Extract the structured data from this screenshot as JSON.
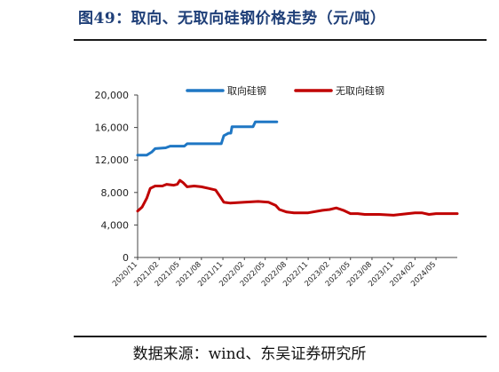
{
  "header": {
    "title": "图49：取向、无取向硅钢价格走势（元/吨）"
  },
  "footer": {
    "source": "数据来源：wind、东吴证券研究所"
  },
  "chart_data": {
    "type": "line",
    "title": "",
    "xlabel": "",
    "ylabel": "",
    "ylim": [
      0,
      20000
    ],
    "y_ticks": [
      "20,000",
      "16,000",
      "12,000",
      "8,000",
      "4,000",
      "0"
    ],
    "x_ticks": [
      "2020/11",
      "2021/02",
      "2021/05",
      "2021/08",
      "2021/11",
      "2022/02",
      "2022/05",
      "2022/08",
      "2022/11",
      "2023/02",
      "2023/05",
      "2023/08",
      "2023/11",
      "2024/02",
      "2024/05"
    ],
    "x_range": [
      "2020/11",
      "2024/07"
    ],
    "legend_position": "top-center",
    "grid": false,
    "series": [
      {
        "name": "取向硅钢",
        "color": "#1f77c4",
        "points": [
          [
            "2020-11-01",
            12600
          ],
          [
            "2020-12-10",
            12600
          ],
          [
            "2021-01-01",
            13000
          ],
          [
            "2021-01-15",
            13400
          ],
          [
            "2021-03-01",
            13500
          ],
          [
            "2021-03-20",
            13700
          ],
          [
            "2021-05-20",
            13700
          ],
          [
            "2021-06-01",
            14000
          ],
          [
            "2021-10-25",
            14000
          ],
          [
            "2021-11-05",
            15000
          ],
          [
            "2021-11-25",
            15300
          ],
          [
            "2021-12-05",
            15300
          ],
          [
            "2021-12-10",
            16100
          ],
          [
            "2022-03-10",
            16100
          ],
          [
            "2022-03-20",
            16700
          ],
          [
            "2022-06-20",
            16700
          ]
        ]
      },
      {
        "name": "无取向硅钢",
        "color": "#c00000",
        "points": [
          [
            "2020-11-01",
            5700
          ],
          [
            "2020-11-20",
            6200
          ],
          [
            "2020-12-10",
            7300
          ],
          [
            "2020-12-25",
            8500
          ],
          [
            "2021-01-15",
            8800
          ],
          [
            "2021-02-15",
            8800
          ],
          [
            "2021-03-05",
            9000
          ],
          [
            "2021-04-05",
            8900
          ],
          [
            "2021-04-20",
            9000
          ],
          [
            "2021-05-01",
            9500
          ],
          [
            "2021-05-15",
            9200
          ],
          [
            "2021-06-01",
            8700
          ],
          [
            "2021-07-01",
            8800
          ],
          [
            "2021-08-01",
            8700
          ],
          [
            "2021-09-01",
            8500
          ],
          [
            "2021-10-01",
            8300
          ],
          [
            "2021-10-20",
            7500
          ],
          [
            "2021-11-05",
            6800
          ],
          [
            "2021-12-01",
            6700
          ],
          [
            "2022-02-01",
            6800
          ],
          [
            "2022-04-01",
            6900
          ],
          [
            "2022-05-15",
            6800
          ],
          [
            "2022-06-15",
            6400
          ],
          [
            "2022-07-01",
            5900
          ],
          [
            "2022-08-01",
            5600
          ],
          [
            "2022-09-01",
            5500
          ],
          [
            "2022-11-01",
            5500
          ],
          [
            "2023-01-01",
            5800
          ],
          [
            "2023-02-01",
            5900
          ],
          [
            "2023-03-01",
            6100
          ],
          [
            "2023-04-01",
            5800
          ],
          [
            "2023-05-01",
            5400
          ],
          [
            "2023-06-01",
            5400
          ],
          [
            "2023-07-01",
            5300
          ],
          [
            "2023-09-01",
            5300
          ],
          [
            "2023-11-01",
            5200
          ],
          [
            "2024-01-01",
            5400
          ],
          [
            "2024-02-01",
            5500
          ],
          [
            "2024-03-01",
            5500
          ],
          [
            "2024-04-01",
            5300
          ],
          [
            "2024-05-01",
            5400
          ],
          [
            "2024-07-31",
            5400
          ]
        ]
      }
    ]
  }
}
